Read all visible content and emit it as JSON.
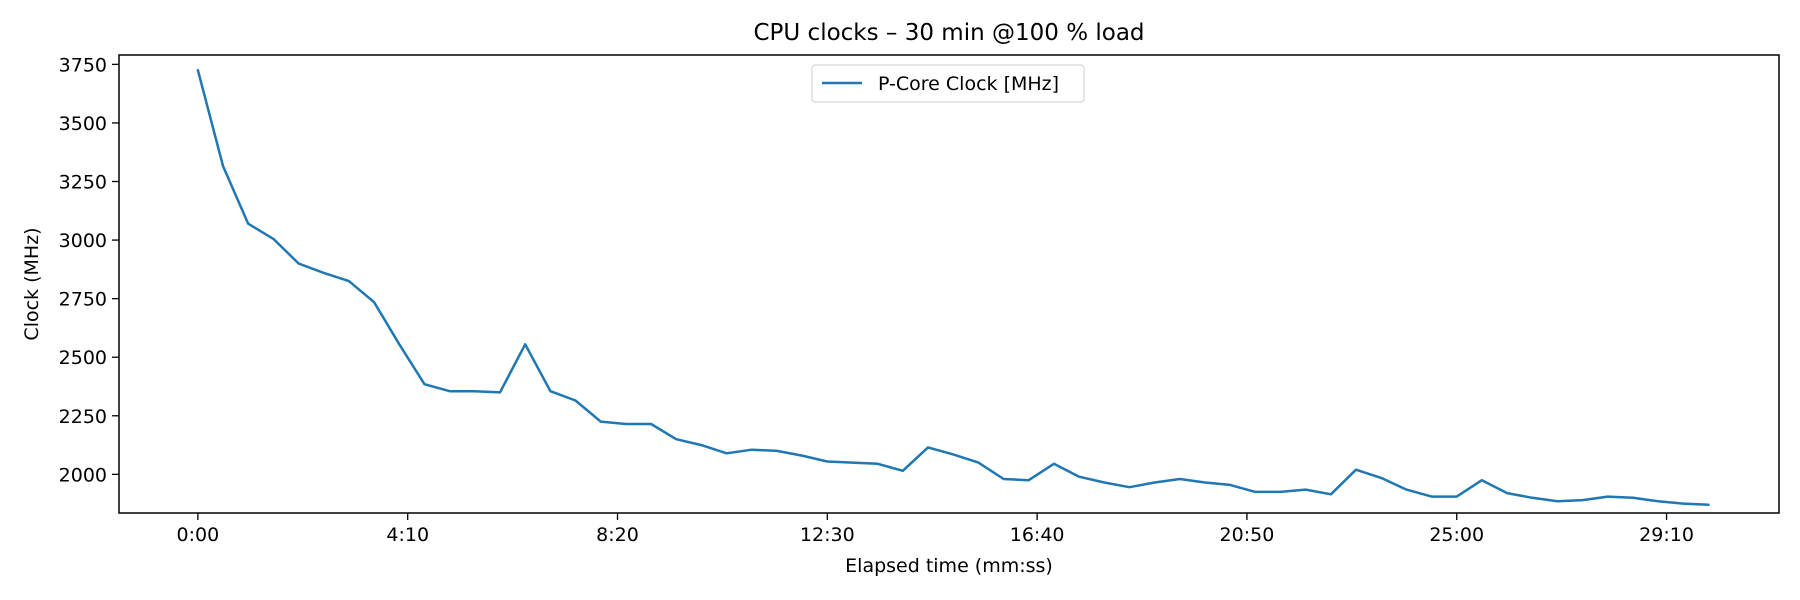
{
  "chart_data": {
    "type": "line",
    "title": "CPU clocks – 30 min @100 % load",
    "xlabel": "Elapsed time (mm:ss)",
    "ylabel": "Clock (MHz)",
    "x_unit": "seconds",
    "xlim": [
      -94,
      1884
    ],
    "ylim": [
      1835,
      3790
    ],
    "xticks": [
      {
        "value": 0,
        "label": "0:00"
      },
      {
        "value": 250,
        "label": "4:10"
      },
      {
        "value": 500,
        "label": "8:20"
      },
      {
        "value": 750,
        "label": "12:30"
      },
      {
        "value": 1000,
        "label": "16:40"
      },
      {
        "value": 1250,
        "label": "20:50"
      },
      {
        "value": 1500,
        "label": "25:00"
      },
      {
        "value": 1750,
        "label": "29:10"
      }
    ],
    "yticks": [
      2000,
      2250,
      2500,
      2750,
      3000,
      3250,
      3500,
      3750
    ],
    "legend_position": "top-center",
    "grid": false,
    "series": [
      {
        "name": "P-Core Clock [MHz]",
        "color": "#1f77b4",
        "x": [
          0,
          30,
          60,
          90,
          120,
          150,
          180,
          210,
          240,
          270,
          300,
          330,
          360,
          390,
          420,
          450,
          480,
          510,
          540,
          570,
          600,
          630,
          660,
          690,
          720,
          750,
          780,
          810,
          840,
          870,
          900,
          930,
          960,
          990,
          1020,
          1050,
          1080,
          1110,
          1140,
          1170,
          1200,
          1230,
          1260,
          1290,
          1320,
          1350,
          1380,
          1410,
          1440,
          1470,
          1500,
          1530,
          1560,
          1590,
          1620,
          1650,
          1680,
          1710,
          1740,
          1770,
          1800
        ],
        "values": [
          3725,
          3315,
          3070,
          3005,
          2900,
          2860,
          2825,
          2735,
          2555,
          2385,
          2355,
          2355,
          2350,
          2555,
          2355,
          2315,
          2225,
          2215,
          2215,
          2150,
          2125,
          2090,
          2105,
          2100,
          2080,
          2055,
          2050,
          2045,
          2015,
          2115,
          2085,
          2050,
          1980,
          1975,
          2045,
          1990,
          1965,
          1945,
          1965,
          1980,
          1965,
          1955,
          1925,
          1925,
          1935,
          1915,
          2020,
          1985,
          1935,
          1905,
          1905,
          1975,
          1920,
          1900,
          1885,
          1890,
          1905,
          1900,
          1885,
          1875,
          1870
        ]
      }
    ]
  }
}
